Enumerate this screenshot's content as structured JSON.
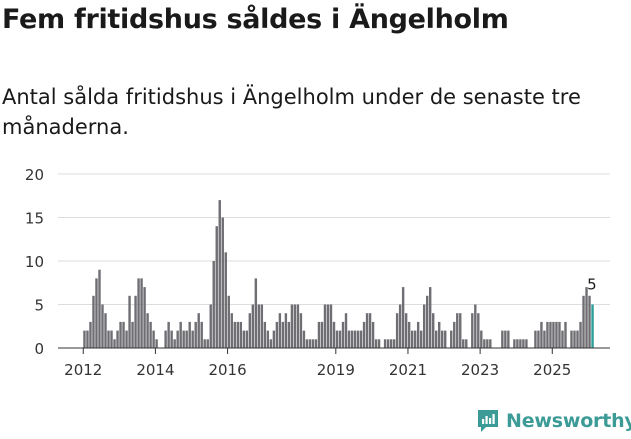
{
  "title": "Fem fritidshus såldes i Ängelholm",
  "subtitle": "Antal sålda fritidshus i Ängelholm under de senaste tre månaderna.",
  "brand": "Newsworthy",
  "colors": {
    "bar": "#6e6e73",
    "highlight": "#2a9d97",
    "grid": "#dddddd",
    "axis": "#333333",
    "brand": "#3d9b97"
  },
  "chart_data": {
    "type": "bar",
    "title": "Fem fritidshus såldes i Ängelholm",
    "ylim": [
      0,
      20
    ],
    "y_ticks": [
      0,
      5,
      10,
      15,
      20
    ],
    "x_range": [
      2011.3,
      2026.6
    ],
    "x_ticks": [
      {
        "value": 2012,
        "label": "2012"
      },
      {
        "value": 2014,
        "label": "2014"
      },
      {
        "value": 2016,
        "label": "2016"
      },
      {
        "value": 2019,
        "label": "2019"
      },
      {
        "value": 2021,
        "label": "2021"
      },
      {
        "value": 2023,
        "label": "2023"
      },
      {
        "value": 2025,
        "label": "2025"
      }
    ],
    "start": 2012,
    "period_per_bar": 0.08333,
    "values": [
      2,
      2,
      3,
      6,
      8,
      9,
      5,
      4,
      2,
      2,
      1,
      2,
      3,
      3,
      2,
      6,
      3,
      6,
      8,
      8,
      7,
      4,
      3,
      2,
      1,
      0,
      0,
      2,
      3,
      2,
      1,
      2,
      3,
      2,
      2,
      3,
      2,
      3,
      4,
      3,
      1,
      1,
      5,
      10,
      14,
      17,
      15,
      11,
      6,
      4,
      3,
      3,
      3,
      2,
      2,
      4,
      5,
      8,
      5,
      5,
      3,
      2,
      1,
      2,
      3,
      4,
      3,
      4,
      3,
      5,
      5,
      5,
      4,
      2,
      1,
      1,
      1,
      1,
      3,
      3,
      5,
      5,
      5,
      3,
      2,
      2,
      3,
      4,
      2,
      2,
      2,
      2,
      2,
      3,
      4,
      4,
      3,
      1,
      1,
      0,
      1,
      1,
      1,
      1,
      4,
      5,
      7,
      4,
      3,
      2,
      2,
      3,
      2,
      5,
      6,
      7,
      4,
      2,
      3,
      2,
      2,
      0,
      2,
      3,
      4,
      4,
      1,
      1,
      0,
      4,
      5,
      4,
      2,
      1,
      1,
      1,
      0,
      0,
      0,
      2,
      2,
      2,
      0,
      1,
      1,
      1,
      1,
      1,
      0,
      0,
      2,
      2,
      3,
      2,
      3,
      3,
      3,
      3,
      3,
      2,
      3,
      0,
      2,
      2,
      2,
      3,
      6,
      7,
      6,
      5
    ],
    "highlight_last": true,
    "last_value_label": "5"
  }
}
